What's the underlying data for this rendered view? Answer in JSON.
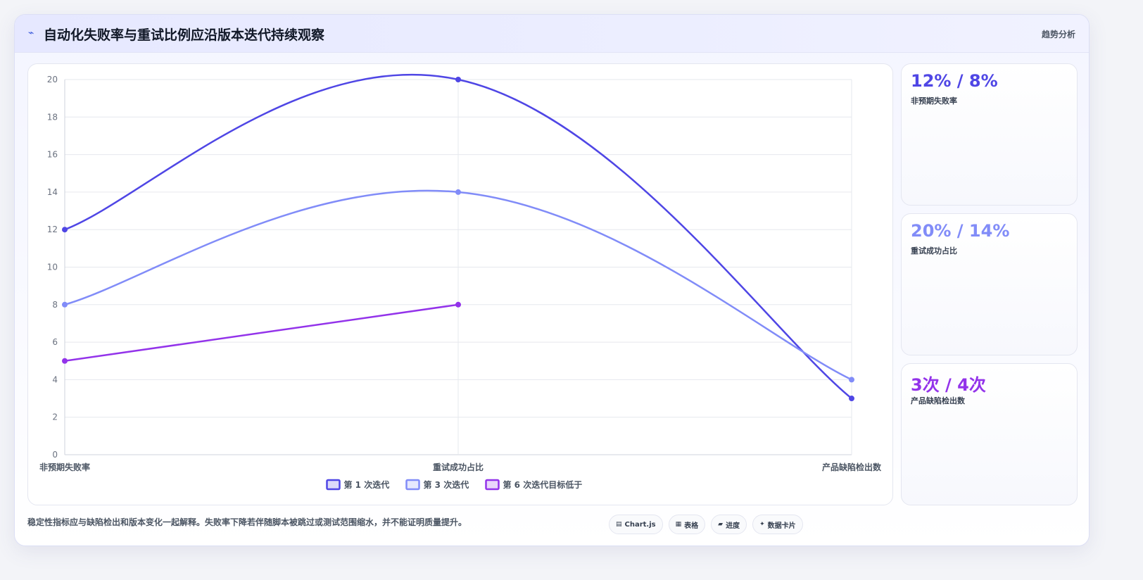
{
  "header": {
    "title": "自动化失败率与重试比例应沿版本迭代持续观察",
    "title_icon": "⌁",
    "tag": "趋势分析"
  },
  "chart_data": {
    "type": "line",
    "categories": [
      "非预期失败率",
      "重试成功占比",
      "产品缺陷检出数"
    ],
    "series": [
      {
        "name": "第 1 次迭代",
        "values": [
          12,
          20,
          3
        ],
        "color": "#4f46e5"
      },
      {
        "name": "第 3 次迭代",
        "values": [
          8,
          14,
          4
        ],
        "color": "#818cf8"
      },
      {
        "name": "第 6 次迭代目标低于",
        "values": [
          5,
          8,
          null
        ],
        "color": "#9333ea"
      }
    ],
    "ylim": [
      0,
      20
    ],
    "yticks": [
      "0",
      "2",
      "4",
      "6",
      "8",
      "10",
      "12",
      "14",
      "16",
      "18",
      "20"
    ],
    "grid": true,
    "legend": "bottom-center"
  },
  "stats": [
    {
      "value": "12% / 8%",
      "label": "非预期失败率",
      "color": "#4f46e5"
    },
    {
      "value": "20% / 14%",
      "label": "重试成功占比",
      "color": "#818cf8"
    },
    {
      "value": "3次 / 4次",
      "label": "产品缺陷检出数",
      "color": "#9333ea"
    }
  ],
  "footer": {
    "note": "稳定性指标应与缺陷检出和版本变化一起解释。失败率下降若伴随脚本被跳过或测试范围缩水，并不能证明质量提升。",
    "pills": [
      {
        "icon": "▤",
        "label": "Chart.js"
      },
      {
        "icon": "▦",
        "label": "表格"
      },
      {
        "icon": "▰",
        "label": "进度"
      },
      {
        "icon": "✦",
        "label": "数据卡片"
      }
    ]
  }
}
